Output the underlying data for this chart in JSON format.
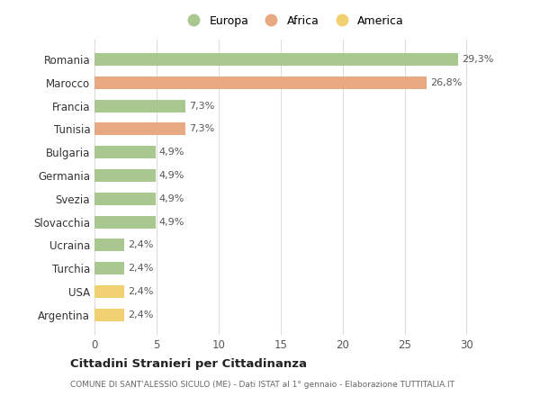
{
  "categories": [
    "Romania",
    "Marocco",
    "Francia",
    "Tunisia",
    "Bulgaria",
    "Germania",
    "Svezia",
    "Slovacchia",
    "Ucraina",
    "Turchia",
    "USA",
    "Argentina"
  ],
  "values": [
    29.3,
    26.8,
    7.3,
    7.3,
    4.9,
    4.9,
    4.9,
    4.9,
    2.4,
    2.4,
    2.4,
    2.4
  ],
  "labels": [
    "29,3%",
    "26,8%",
    "7,3%",
    "7,3%",
    "4,9%",
    "4,9%",
    "4,9%",
    "4,9%",
    "2,4%",
    "2,4%",
    "2,4%",
    "2,4%"
  ],
  "colors": [
    "#a8c890",
    "#e8a882",
    "#a8c890",
    "#e8a882",
    "#a8c890",
    "#a8c890",
    "#a8c890",
    "#a8c890",
    "#a8c890",
    "#a8c890",
    "#f0d070",
    "#f0d070"
  ],
  "legend_labels": [
    "Europa",
    "Africa",
    "America"
  ],
  "legend_colors": [
    "#a8c890",
    "#e8a882",
    "#f0d070"
  ],
  "xlim": [
    0,
    32
  ],
  "xticks": [
    0,
    5,
    10,
    15,
    20,
    25,
    30
  ],
  "title": "Cittadini Stranieri per Cittadinanza",
  "subtitle": "COMUNE DI SANT'ALESSIO SICULO (ME) - Dati ISTAT al 1° gennaio - Elaborazione TUTTITALIA.IT",
  "bg_color": "#ffffff",
  "grid_color": "#dddddd",
  "bar_height": 0.55
}
